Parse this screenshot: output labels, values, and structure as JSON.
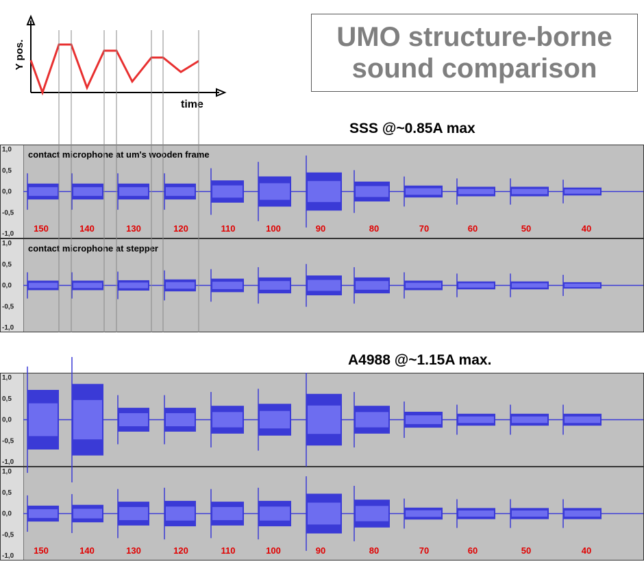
{
  "title": {
    "line1": "UMO structure-borne",
    "line2": "sound comparison"
  },
  "inset_plot": {
    "ylabel": "Y pos.",
    "xlabel": "time"
  },
  "sections": [
    {
      "title": "SSS @~0.85A max",
      "tracks": [
        {
          "label": "contact microphone at um's wooden frame",
          "show_speeds": true
        },
        {
          "label": "contact microphone at stepper",
          "show_speeds": false
        }
      ]
    },
    {
      "title": "A4988 @~1.15A max.",
      "tracks": [
        {
          "label": "",
          "show_speeds": false
        },
        {
          "label": "",
          "show_speeds": true
        }
      ]
    }
  ],
  "amplitude_axis": [
    "1,0",
    "0,5",
    "0,0",
    "-0,5",
    "-1,0"
  ],
  "colors": {
    "waveform": "#3a3ad6",
    "waveform_rms": "#6d6df0",
    "speed_label": "#e00000",
    "track_bg": "#c0c0c0",
    "inset_line": "#e83030"
  },
  "chart_data": {
    "type": "area",
    "title": "UMO structure-borne sound comparison",
    "xlabel": "",
    "ylabel": "",
    "ylim": [
      -1.0,
      1.0
    ],
    "categories": [
      "150",
      "140",
      "130",
      "120",
      "110",
      "100",
      "90",
      "80",
      "70",
      "60",
      "50",
      "40"
    ],
    "series": [
      {
        "name": "SSS @~0.85A max - contact microphone at um's wooden frame",
        "values": [
          0.2,
          0.2,
          0.2,
          0.2,
          0.28,
          0.38,
          0.48,
          0.25,
          0.15,
          0.12,
          0.12,
          0.1
        ]
      },
      {
        "name": "SSS @~0.85A max - contact microphone at stepper",
        "values": [
          0.12,
          0.12,
          0.13,
          0.15,
          0.17,
          0.2,
          0.25,
          0.2,
          0.12,
          0.1,
          0.1,
          0.08
        ]
      },
      {
        "name": "A4988 @~1.15A max. - track 1",
        "values": [
          0.75,
          0.9,
          0.3,
          0.3,
          0.35,
          0.4,
          0.65,
          0.35,
          0.2,
          0.15,
          0.15,
          0.15
        ]
      },
      {
        "name": "A4988 @~1.15A max. - track 2",
        "values": [
          0.2,
          0.22,
          0.3,
          0.32,
          0.3,
          0.32,
          0.5,
          0.35,
          0.15,
          0.14,
          0.14,
          0.14
        ]
      }
    ]
  }
}
